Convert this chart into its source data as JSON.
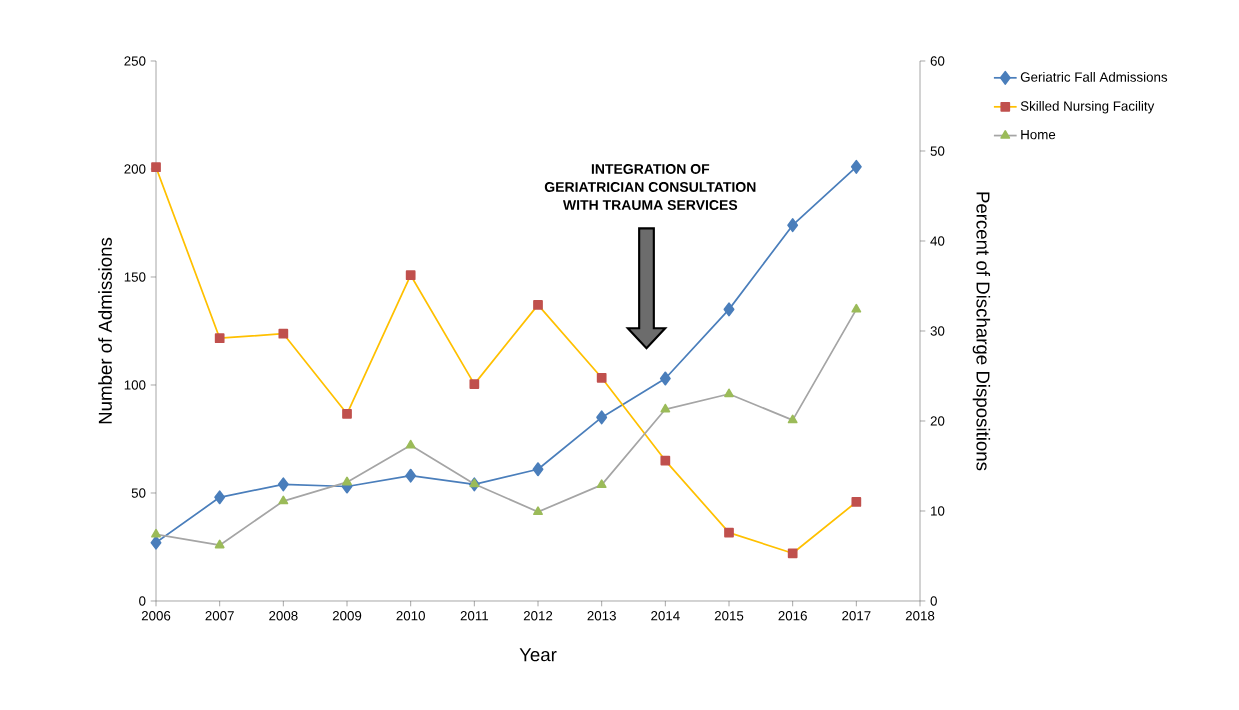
{
  "chart_data": {
    "type": "line",
    "x": [
      2006,
      2007,
      2008,
      2009,
      2010,
      2011,
      2012,
      2013,
      2014,
      2015,
      2016,
      2017
    ],
    "xlabel": "Year",
    "ylabel": "Number of Admissions",
    "y2label": "Percent of Discharge Dispositions",
    "xlim": [
      2006,
      2018
    ],
    "xticks": [
      2006,
      2007,
      2008,
      2009,
      2010,
      2011,
      2012,
      2013,
      2014,
      2015,
      2016,
      2017,
      2018
    ],
    "ylim": [
      0,
      250
    ],
    "yticks": [
      0,
      50,
      100,
      150,
      200,
      250
    ],
    "y2lim": [
      0,
      60
    ],
    "y2ticks": [
      0,
      10,
      20,
      30,
      40,
      50,
      60
    ],
    "legend": "right",
    "grid": false,
    "annotations": [
      "INTEGRATION OF",
      "GERIATRICIAN CONSULTATION",
      "WITH TRAUMA SERVICES"
    ],
    "series": [
      {
        "name": "Geriatric Fall Admissions",
        "color": "#4a7ebb",
        "marker": "diamond",
        "values": [
          27,
          48,
          54,
          53,
          58,
          54,
          61,
          85,
          103,
          135,
          174,
          201
        ]
      },
      {
        "name": "Skilled Nursing Facility",
        "color": "#ffc000",
        "colors": [
          "#c0504d",
          "#c0504d",
          "#c0504d",
          "#c0504d",
          "#c0504d",
          "#c0504d",
          "#c0504d",
          "#c0504d",
          "#c0504d",
          "#c0504d",
          "#c0504d",
          "#c0504d"
        ],
        "marker": "square",
        "axis": "y2",
        "values": [
          48.2,
          29.2,
          29.7,
          20.8,
          36.2,
          24.1,
          32.9,
          24.8,
          15.6,
          7.6,
          5.3,
          11.0
        ]
      },
      {
        "name": "Home",
        "color": "#a5a5a5",
        "colors": [
          "#9bbb59",
          "#9bbb59",
          "#9bbb59",
          "#9bbb59",
          "#9bbb59",
          "#9bbb59",
          "#9bbb59",
          "#9bbb59",
          "#9bbb59",
          "#9bbb59",
          "#9bbb59",
          "#9bbb59"
        ],
        "marker": "triangle",
        "axis": "y2",
        "values": [
          7.4,
          6.2,
          11.1,
          13.2,
          17.3,
          13.0,
          9.9,
          12.9,
          21.3,
          23.0,
          20.1,
          32.4
        ]
      }
    ]
  }
}
